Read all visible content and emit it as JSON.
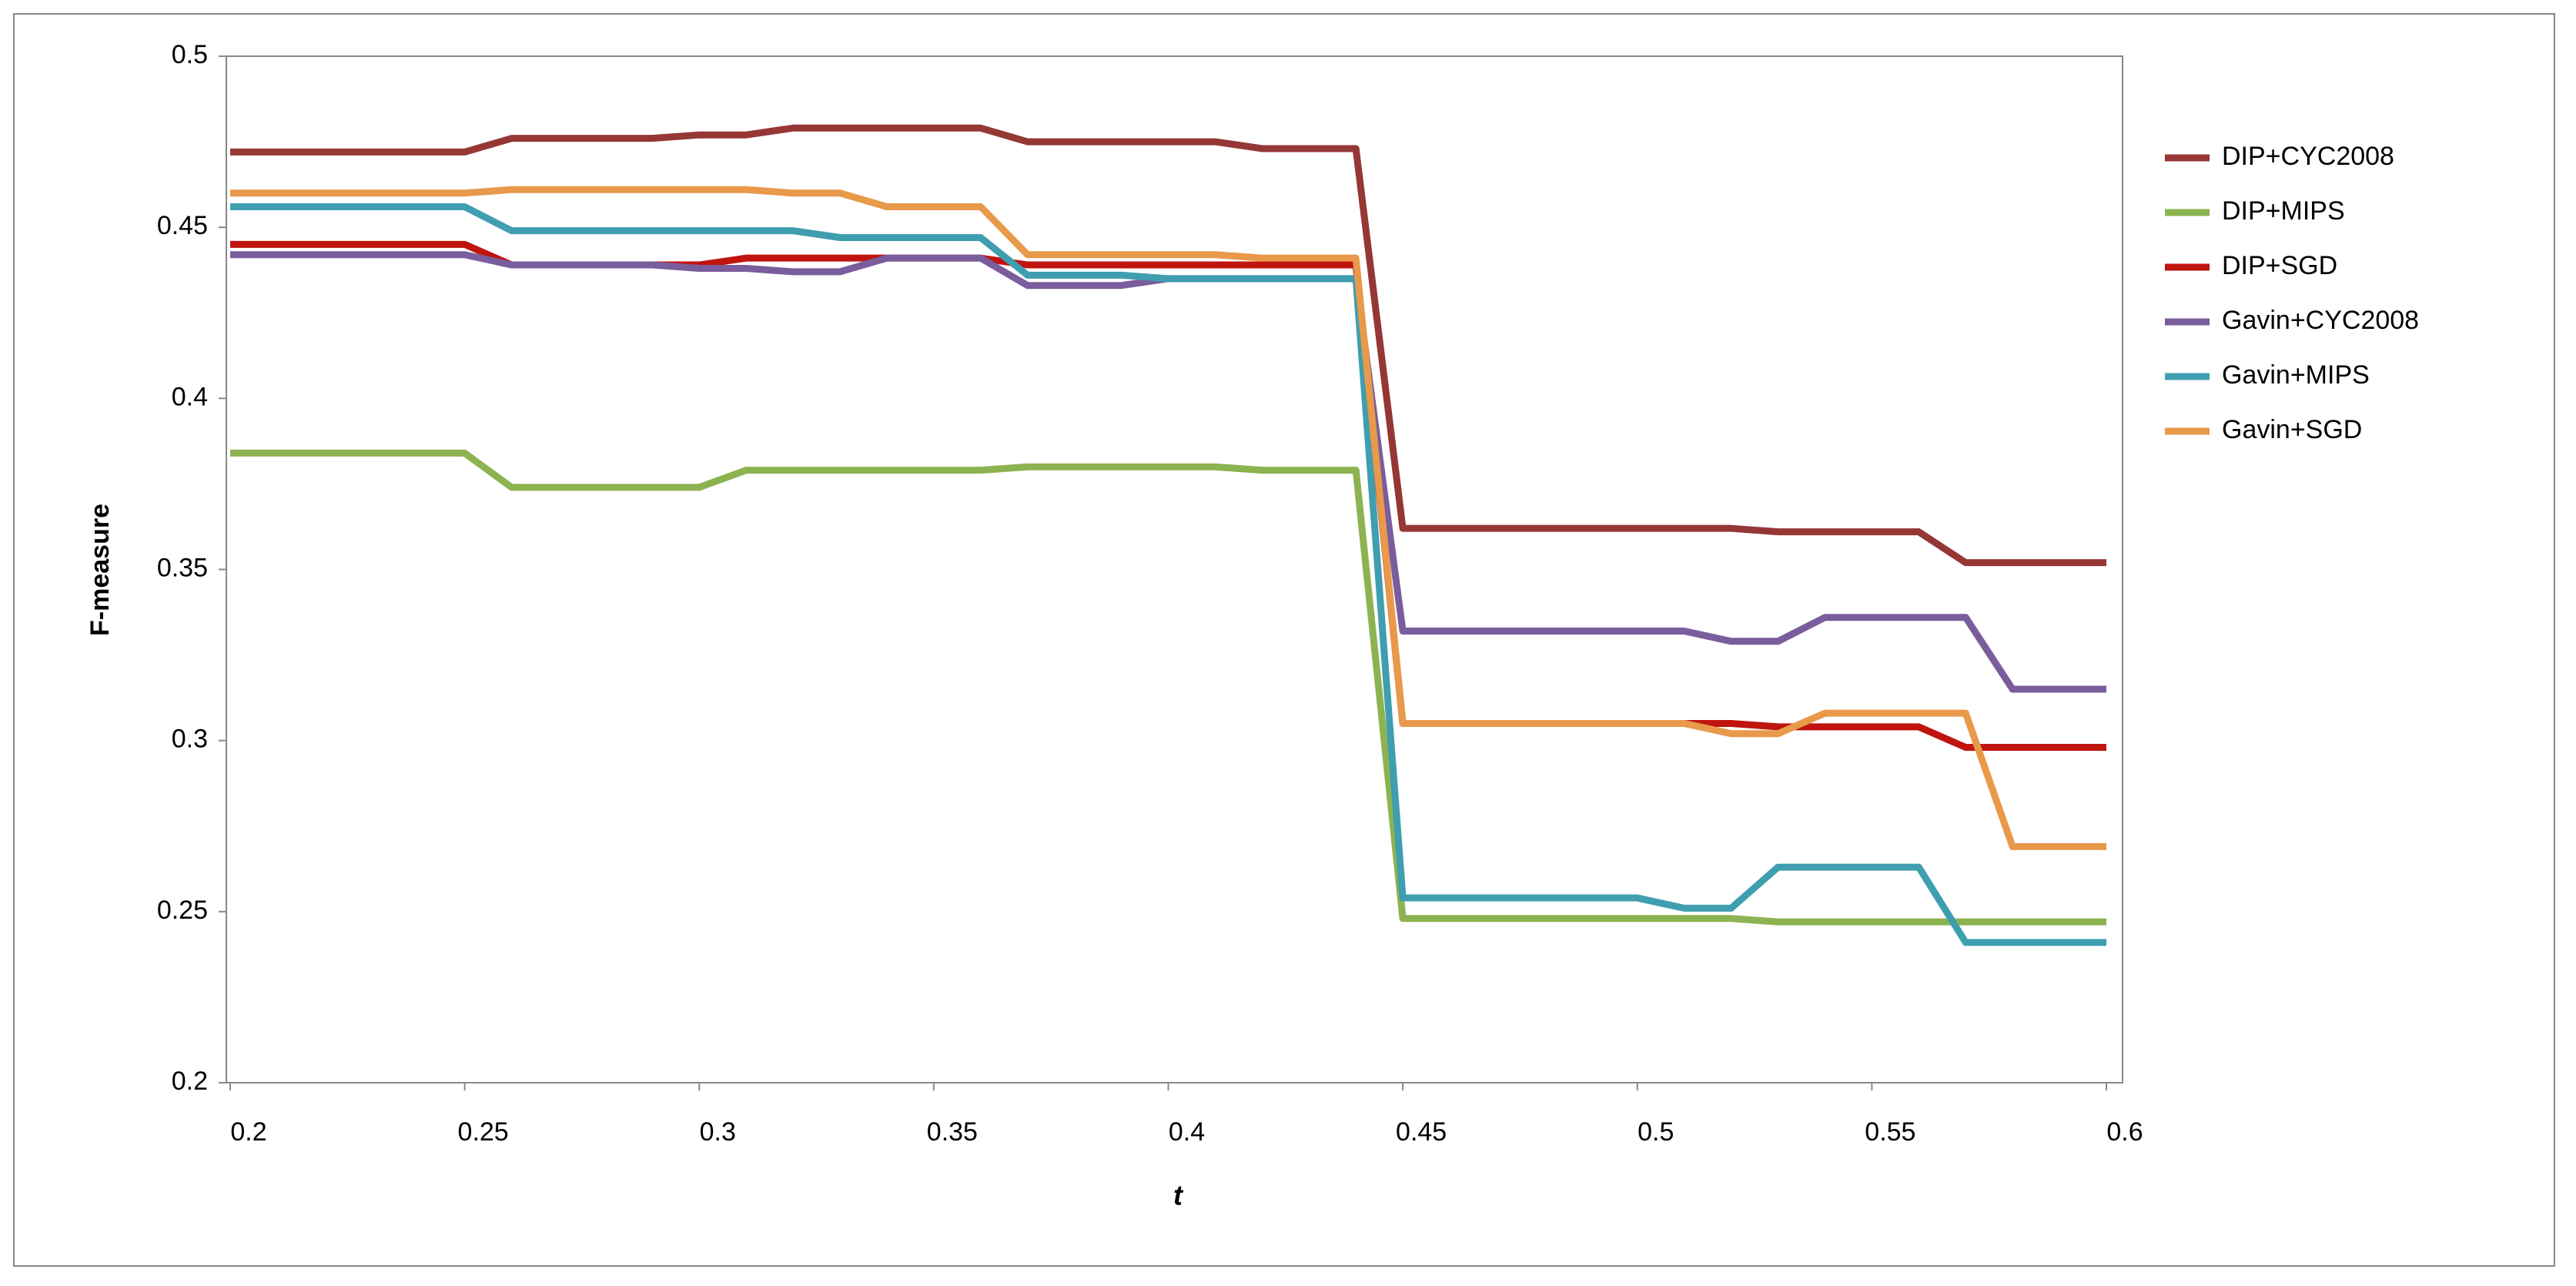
{
  "chart_data": {
    "type": "line",
    "x_label": "t",
    "y_label": "F-measure",
    "x": [
      0.2,
      0.21,
      0.22,
      0.23,
      0.24,
      0.25,
      0.26,
      0.27,
      0.28,
      0.29,
      0.3,
      0.31,
      0.32,
      0.33,
      0.34,
      0.35,
      0.36,
      0.37,
      0.38,
      0.39,
      0.4,
      0.41,
      0.42,
      0.43,
      0.44,
      0.45,
      0.46,
      0.47,
      0.48,
      0.49,
      0.5,
      0.51,
      0.52,
      0.53,
      0.54,
      0.55,
      0.56,
      0.57,
      0.58,
      0.59,
      0.6
    ],
    "xlim": [
      0.2,
      0.6
    ],
    "xticks": [
      0.2,
      0.25,
      0.3,
      0.35,
      0.4,
      0.45,
      0.5,
      0.55,
      0.6
    ],
    "ylim": [
      0.2,
      0.5
    ],
    "yticks": [
      0.2,
      0.25,
      0.3,
      0.35,
      0.4,
      0.45,
      0.5
    ],
    "legend": "right",
    "series": [
      {
        "name": "DIP+CYC2008",
        "color": "#953735",
        "values": [
          0.472,
          0.472,
          0.472,
          0.472,
          0.472,
          0.472,
          0.476,
          0.476,
          0.476,
          0.476,
          0.477,
          0.477,
          0.479,
          0.479,
          0.479,
          0.479,
          0.479,
          0.475,
          0.475,
          0.475,
          0.475,
          0.475,
          0.473,
          0.473,
          0.473,
          0.362,
          0.362,
          0.362,
          0.362,
          0.362,
          0.362,
          0.362,
          0.362,
          0.361,
          0.361,
          0.361,
          0.361,
          0.352,
          0.352,
          0.352,
          0.352
        ]
      },
      {
        "name": "DIP+MIPS",
        "color": "#8db350",
        "values": [
          0.384,
          0.384,
          0.384,
          0.384,
          0.384,
          0.384,
          0.374,
          0.374,
          0.374,
          0.374,
          0.374,
          0.379,
          0.379,
          0.379,
          0.379,
          0.379,
          0.379,
          0.38,
          0.38,
          0.38,
          0.38,
          0.38,
          0.379,
          0.379,
          0.379,
          0.248,
          0.248,
          0.248,
          0.248,
          0.248,
          0.248,
          0.248,
          0.248,
          0.247,
          0.247,
          0.247,
          0.247,
          0.247,
          0.247,
          0.247,
          0.247
        ]
      },
      {
        "name": "DIP+SGD",
        "color": "#c0140f",
        "values": [
          0.445,
          0.445,
          0.445,
          0.445,
          0.445,
          0.445,
          0.439,
          0.439,
          0.439,
          0.439,
          0.439,
          0.441,
          0.441,
          0.441,
          0.441,
          0.441,
          0.441,
          0.439,
          0.439,
          0.439,
          0.439,
          0.439,
          0.439,
          0.439,
          0.439,
          0.305,
          0.305,
          0.305,
          0.305,
          0.305,
          0.305,
          0.305,
          0.305,
          0.304,
          0.304,
          0.304,
          0.304,
          0.298,
          0.298,
          0.298,
          0.298
        ]
      },
      {
        "name": "Gavin+CYC2008",
        "color": "#7a5d9c",
        "values": [
          0.442,
          0.442,
          0.442,
          0.442,
          0.442,
          0.442,
          0.439,
          0.439,
          0.439,
          0.439,
          0.438,
          0.438,
          0.437,
          0.437,
          0.441,
          0.441,
          0.441,
          0.433,
          0.433,
          0.433,
          0.435,
          0.435,
          0.435,
          0.435,
          0.435,
          0.332,
          0.332,
          0.332,
          0.332,
          0.332,
          0.332,
          0.332,
          0.329,
          0.329,
          0.336,
          0.336,
          0.336,
          0.336,
          0.315,
          0.315,
          0.315
        ]
      },
      {
        "name": "Gavin+MIPS",
        "color": "#3f9eb0",
        "values": [
          0.456,
          0.456,
          0.456,
          0.456,
          0.456,
          0.456,
          0.449,
          0.449,
          0.449,
          0.449,
          0.449,
          0.449,
          0.449,
          0.447,
          0.447,
          0.447,
          0.447,
          0.436,
          0.436,
          0.436,
          0.435,
          0.435,
          0.435,
          0.435,
          0.435,
          0.254,
          0.254,
          0.254,
          0.254,
          0.254,
          0.254,
          0.251,
          0.251,
          0.263,
          0.263,
          0.263,
          0.263,
          0.241,
          0.241,
          0.241,
          0.241
        ]
      },
      {
        "name": "Gavin+SGD",
        "color": "#e8994a",
        "values": [
          0.46,
          0.46,
          0.46,
          0.46,
          0.46,
          0.46,
          0.461,
          0.461,
          0.461,
          0.461,
          0.461,
          0.461,
          0.46,
          0.46,
          0.456,
          0.456,
          0.456,
          0.442,
          0.442,
          0.442,
          0.442,
          0.442,
          0.441,
          0.441,
          0.441,
          0.305,
          0.305,
          0.305,
          0.305,
          0.305,
          0.305,
          0.305,
          0.302,
          0.302,
          0.308,
          0.308,
          0.308,
          0.308,
          0.269,
          0.269,
          0.269
        ]
      }
    ]
  }
}
